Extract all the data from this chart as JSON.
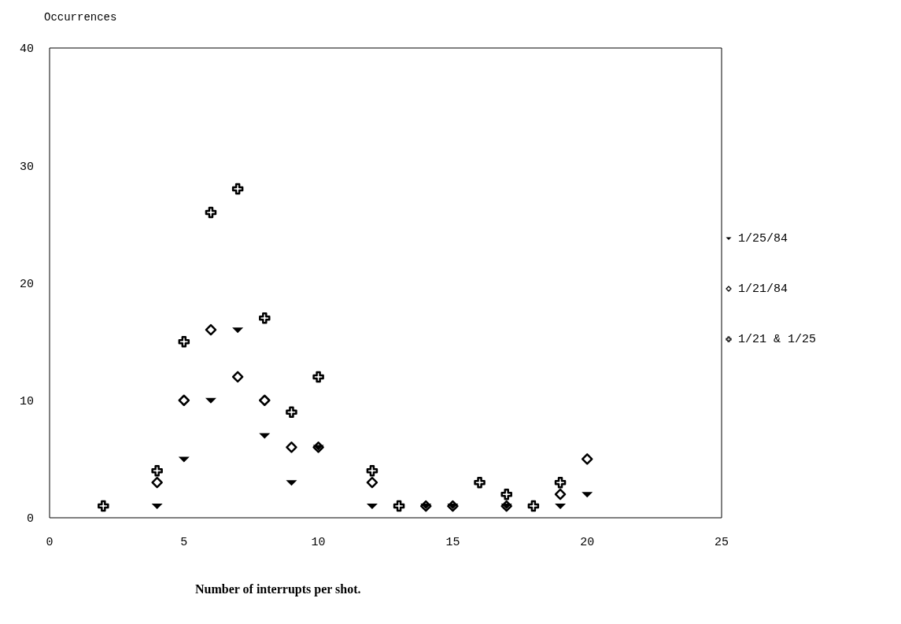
{
  "chart_data": {
    "type": "scatter",
    "xlabel": "Number of interrupts per shot.",
    "ylabel": "Occurrences",
    "xlim": [
      0,
      25
    ],
    "xticks": [
      0,
      5,
      10,
      15,
      20,
      25
    ],
    "ylim": [
      0,
      40
    ],
    "yticks": [
      0,
      10,
      20,
      30,
      40
    ],
    "legend": "right",
    "series": [
      {
        "name": "1/25/84",
        "color": "#000000",
        "marker": "triangle",
        "x": [
          4,
          5,
          6,
          7,
          8,
          9,
          10,
          12,
          14,
          15,
          17,
          19,
          20
        ],
        "values": [
          1,
          5,
          10,
          16,
          7,
          3,
          6,
          1,
          1,
          1,
          1,
          1,
          2
        ]
      },
      {
        "name": "1/21/84",
        "color": "#000000",
        "marker": "diamond",
        "x": [
          4,
          5,
          6,
          7,
          8,
          9,
          10,
          12,
          14,
          15,
          17,
          19,
          20
        ],
        "values": [
          3,
          10,
          16,
          12,
          10,
          6,
          6,
          3,
          1,
          1,
          1,
          2,
          5
        ]
      },
      {
        "name": "1/21 & 1/25",
        "color": "#000000",
        "marker": "cross",
        "x": [
          2,
          4,
          5,
          6,
          7,
          8,
          9,
          10,
          12,
          13,
          16,
          17,
          18,
          19
        ],
        "values": [
          1,
          4,
          15,
          26,
          28,
          17,
          9,
          12,
          4,
          1,
          3,
          2,
          1,
          3
        ]
      }
    ]
  }
}
